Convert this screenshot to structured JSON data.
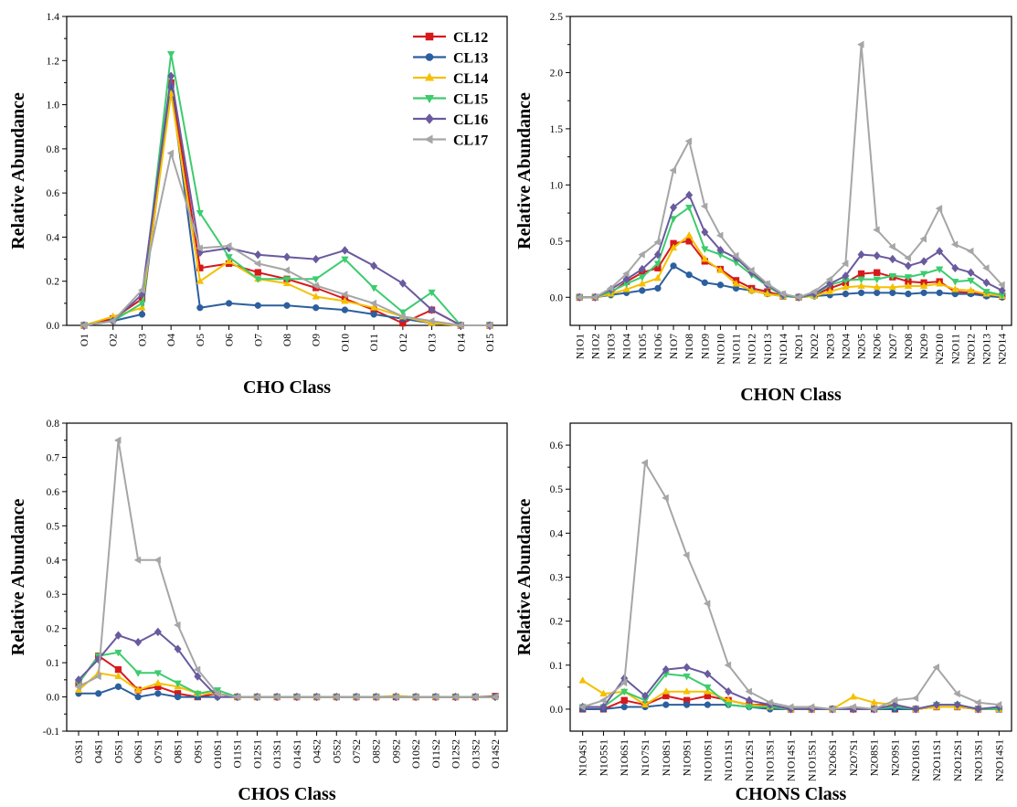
{
  "colors": {
    "CL12": "#d7191c",
    "CL13": "#2c5f9e",
    "CL14": "#f5c000",
    "CL15": "#3dcc6e",
    "CL16": "#6a5a9e",
    "CL17": "#a6a6a6"
  },
  "chart_data": [
    {
      "type": "line",
      "xlabel": "CHO Class",
      "ylabel": "Relative Abundance",
      "ylim": [
        0,
        1.4
      ],
      "yticks": [
        0.0,
        0.2,
        0.4,
        0.6,
        0.8,
        1.0,
        1.2,
        1.4
      ],
      "ytick_labels": [
        "0.0",
        "0.2",
        "0.4",
        "0.6",
        "0.8",
        "1.0",
        "1.2",
        "1.4"
      ],
      "legend": "top-right",
      "categories": [
        "O1",
        "O2",
        "O3",
        "O4",
        "O5",
        "O6",
        "O7",
        "O8",
        "O9",
        "O10",
        "O11",
        "O12",
        "O13",
        "O14",
        "O15"
      ],
      "series": [
        {
          "name": "CL12",
          "values": [
            0.0,
            0.03,
            0.12,
            1.1,
            0.26,
            0.28,
            0.24,
            0.21,
            0.17,
            0.12,
            0.07,
            0.01,
            0.07,
            0.0,
            0.0
          ]
        },
        {
          "name": "CL13",
          "values": [
            0.0,
            0.02,
            0.05,
            1.08,
            0.08,
            0.1,
            0.09,
            0.09,
            0.08,
            0.07,
            0.05,
            0.03,
            0.01,
            0.0,
            0.0
          ]
        },
        {
          "name": "CL14",
          "values": [
            0.0,
            0.04,
            0.08,
            1.05,
            0.2,
            0.29,
            0.21,
            0.19,
            0.13,
            0.11,
            0.08,
            0.04,
            0.01,
            0.0,
            0.0
          ]
        },
        {
          "name": "CL15",
          "values": [
            0.0,
            0.02,
            0.1,
            1.23,
            0.51,
            0.31,
            0.21,
            0.21,
            0.21,
            0.3,
            0.17,
            0.06,
            0.15,
            0.0,
            0.0
          ]
        },
        {
          "name": "CL16",
          "values": [
            0.0,
            0.02,
            0.14,
            1.13,
            0.33,
            0.35,
            0.32,
            0.31,
            0.3,
            0.34,
            0.27,
            0.19,
            0.07,
            0.0,
            0.0
          ]
        },
        {
          "name": "CL17",
          "values": [
            0.0,
            0.02,
            0.16,
            0.78,
            0.35,
            0.36,
            0.28,
            0.25,
            0.18,
            0.14,
            0.1,
            0.04,
            0.02,
            0.0,
            0.0
          ]
        }
      ]
    },
    {
      "type": "line",
      "xlabel": "CHON Class",
      "ylabel": "Relative Abundance",
      "ylim": [
        -0.25,
        2.5
      ],
      "yticks": [
        0.0,
        0.5,
        1.0,
        1.5,
        2.0,
        2.5
      ],
      "ytick_labels": [
        "0.0",
        "0.5",
        "1.0",
        "1.5",
        "2.0",
        "2.5"
      ],
      "categories": [
        "N1O1",
        "N1O2",
        "N1O3",
        "N1O4",
        "N1O5",
        "N1O6",
        "N1O7",
        "N1O8",
        "N1O9",
        "N1O10",
        "N1O11",
        "N1O12",
        "N1O13",
        "N1O14",
        "N2O1",
        "N2O2",
        "N2O3",
        "N2O4",
        "N2O5",
        "N2O6",
        "N2O7",
        "N2O8",
        "N2O9",
        "N2O10",
        "N2O11",
        "N2O12",
        "N2O13",
        "N2O14"
      ],
      "series": [
        {
          "name": "CL12",
          "values": [
            0.0,
            0.0,
            0.04,
            0.14,
            0.22,
            0.26,
            0.48,
            0.5,
            0.32,
            0.25,
            0.15,
            0.08,
            0.05,
            0.01,
            0.0,
            0.02,
            0.08,
            0.13,
            0.21,
            0.22,
            0.18,
            0.14,
            0.13,
            0.14,
            0.05,
            0.04,
            0.02,
            0.01
          ]
        },
        {
          "name": "CL13",
          "values": [
            0.0,
            0.0,
            0.02,
            0.04,
            0.06,
            0.08,
            0.28,
            0.2,
            0.13,
            0.11,
            0.08,
            0.06,
            0.03,
            0.01,
            0.0,
            0.01,
            0.02,
            0.03,
            0.04,
            0.04,
            0.04,
            0.03,
            0.04,
            0.04,
            0.03,
            0.03,
            0.01,
            0.0
          ]
        },
        {
          "name": "CL14",
          "values": [
            0.0,
            0.0,
            0.03,
            0.07,
            0.12,
            0.17,
            0.44,
            0.55,
            0.34,
            0.24,
            0.12,
            0.06,
            0.03,
            0.01,
            0.0,
            0.01,
            0.05,
            0.09,
            0.1,
            0.09,
            0.09,
            0.1,
            0.1,
            0.12,
            0.07,
            0.06,
            0.03,
            0.01
          ]
        },
        {
          "name": "CL15",
          "values": [
            0.0,
            0.0,
            0.05,
            0.12,
            0.18,
            0.3,
            0.7,
            0.8,
            0.43,
            0.38,
            0.31,
            0.2,
            0.1,
            0.01,
            0.0,
            0.02,
            0.11,
            0.15,
            0.16,
            0.16,
            0.19,
            0.18,
            0.21,
            0.25,
            0.14,
            0.15,
            0.05,
            0.02
          ]
        },
        {
          "name": "CL16",
          "values": [
            0.0,
            0.0,
            0.07,
            0.16,
            0.25,
            0.38,
            0.8,
            0.91,
            0.58,
            0.42,
            0.35,
            0.22,
            0.11,
            0.02,
            0.0,
            0.03,
            0.12,
            0.19,
            0.38,
            0.37,
            0.34,
            0.28,
            0.32,
            0.41,
            0.26,
            0.22,
            0.13,
            0.06
          ]
        },
        {
          "name": "CL17",
          "values": [
            0.0,
            0.0,
            0.08,
            0.21,
            0.38,
            0.49,
            1.13,
            1.39,
            0.81,
            0.55,
            0.37,
            0.24,
            0.12,
            0.03,
            0.0,
            0.05,
            0.16,
            0.3,
            2.25,
            0.6,
            0.45,
            0.35,
            0.52,
            0.79,
            0.47,
            0.41,
            0.26,
            0.11
          ]
        }
      ]
    },
    {
      "type": "line",
      "xlabel": "CHOS Class",
      "ylabel": "Relative Abundance",
      "ylim": [
        -0.1,
        0.8
      ],
      "yticks": [
        -0.1,
        0.0,
        0.1,
        0.2,
        0.3,
        0.4,
        0.5,
        0.6,
        0.7,
        0.8
      ],
      "ytick_labels": [
        "-0.1",
        "0.0",
        "0.1",
        "0.2",
        "0.3",
        "0.4",
        "0.5",
        "0.6",
        "0.7",
        "0.8"
      ],
      "categories": [
        "O3S1",
        "O4S1",
        "O5S1",
        "O6S1",
        "O7S1",
        "O8S1",
        "O9S1",
        "O10S1",
        "O11S1",
        "O12S1",
        "O13S1",
        "O14S1",
        "O4S2",
        "O5S2",
        "O7S2",
        "O8S2",
        "O9S2",
        "O10S2",
        "O11S2",
        "O12S2",
        "O13S2",
        "O14S2"
      ],
      "series": [
        {
          "name": "CL12",
          "values": [
            0.04,
            0.12,
            0.08,
            0.02,
            0.03,
            0.01,
            0.0,
            0.01,
            0.0,
            0.0,
            0.0,
            0.0,
            0.0,
            0.0,
            0.0,
            0.0,
            0.0,
            0.0,
            0.0,
            0.0,
            0.0,
            0.002
          ]
        },
        {
          "name": "CL13",
          "values": [
            0.01,
            0.01,
            0.03,
            0.0,
            0.01,
            0.0,
            0.0,
            0.0,
            0.0,
            0.0,
            0.0,
            0.0,
            0.0,
            0.0,
            0.0,
            0.0,
            0.0,
            0.0,
            0.0,
            0.0,
            0.0,
            0.0
          ]
        },
        {
          "name": "CL14",
          "values": [
            0.02,
            0.07,
            0.06,
            0.02,
            0.04,
            0.03,
            0.01,
            0.01,
            0.0,
            0.0,
            0.0,
            0.0,
            0.0,
            0.0,
            0.0,
            0.0,
            0.003,
            0.0,
            0.0,
            0.0,
            0.0,
            0.0
          ]
        },
        {
          "name": "CL15",
          "values": [
            0.04,
            0.12,
            0.13,
            0.07,
            0.07,
            0.04,
            0.01,
            0.02,
            0.0,
            0.0,
            0.0,
            0.0,
            0.0,
            0.0,
            0.0,
            0.0,
            0.0,
            0.0,
            0.0,
            0.0,
            0.0,
            0.0
          ]
        },
        {
          "name": "CL16",
          "values": [
            0.05,
            0.11,
            0.18,
            0.16,
            0.19,
            0.14,
            0.06,
            0.0,
            0.0,
            0.0,
            0.0,
            0.0,
            0.0,
            0.0,
            0.0,
            0.0,
            0.0,
            0.0,
            0.0,
            0.0,
            0.0,
            0.0
          ]
        },
        {
          "name": "CL17",
          "values": [
            0.03,
            0.06,
            0.75,
            0.4,
            0.4,
            0.21,
            0.08,
            0.01,
            0.0,
            0.0,
            0.0,
            0.0,
            0.0,
            0.0,
            0.0,
            0.0,
            0.0,
            0.0,
            0.0,
            0.0,
            0.0,
            0.0
          ]
        }
      ]
    },
    {
      "type": "line",
      "xlabel": "CHONS Class",
      "ylabel": "Relative Abundance",
      "ylim": [
        -0.05,
        0.65
      ],
      "yticks": [
        0.0,
        0.1,
        0.2,
        0.3,
        0.4,
        0.5,
        0.6
      ],
      "ytick_labels": [
        "0.0",
        "0.1",
        "0.2",
        "0.3",
        "0.4",
        "0.5",
        "0.6"
      ],
      "categories": [
        "N1O4S1",
        "N1O5S1",
        "N1O6S1",
        "N1O7S1",
        "N1O8S1",
        "N1O9S1",
        "N1O10S1",
        "N1O11S1",
        "N1O12S1",
        "N1O13S1",
        "N1O14S1",
        "N1O15S1",
        "N2O6S1",
        "N2O7S1",
        "N2O8S1",
        "N2O9S1",
        "N2O10S1",
        "N2O11S1",
        "N2O12S1",
        "N2O13S1",
        "N2O14S1"
      ],
      "series": [
        {
          "name": "CL12",
          "values": [
            0.0,
            0.0,
            0.02,
            0.01,
            0.03,
            0.02,
            0.03,
            0.02,
            0.01,
            0.01,
            0.0,
            0.0,
            0.0,
            0.0,
            0.0,
            0.0,
            0.0,
            0.005,
            0.005,
            0.0,
            0.0
          ]
        },
        {
          "name": "CL13",
          "values": [
            0.0,
            0.0,
            0.005,
            0.005,
            0.01,
            0.01,
            0.01,
            0.01,
            0.005,
            0.0,
            0.0,
            0.0,
            0.0,
            0.0,
            0.0,
            0.0,
            0.0,
            0.005,
            0.005,
            0.0,
            0.0
          ]
        },
        {
          "name": "CL14",
          "values": [
            0.065,
            0.035,
            0.04,
            0.01,
            0.04,
            0.04,
            0.04,
            0.02,
            0.01,
            0.005,
            0.0,
            0.0,
            0.0,
            0.028,
            0.015,
            0.01,
            0.0,
            0.005,
            0.005,
            0.0,
            0.0
          ]
        },
        {
          "name": "CL15",
          "values": [
            0.005,
            0.005,
            0.04,
            0.02,
            0.08,
            0.075,
            0.05,
            0.01,
            0.005,
            0.005,
            0.0,
            0.0,
            0.0,
            0.0,
            0.0,
            0.005,
            0.0,
            0.01,
            0.01,
            0.0,
            0.0
          ]
        },
        {
          "name": "CL16",
          "values": [
            0.005,
            0.005,
            0.07,
            0.03,
            0.09,
            0.095,
            0.08,
            0.04,
            0.02,
            0.01,
            0.0,
            0.0,
            0.0,
            0.0,
            0.0,
            0.01,
            0.0,
            0.01,
            0.01,
            0.0,
            0.005
          ]
        },
        {
          "name": "CL17",
          "values": [
            0.005,
            0.02,
            0.06,
            0.56,
            0.48,
            0.35,
            0.24,
            0.1,
            0.04,
            0.015,
            0.005,
            0.005,
            0.0,
            0.005,
            0.0,
            0.02,
            0.025,
            0.095,
            0.035,
            0.015,
            0.01
          ]
        }
      ]
    }
  ]
}
